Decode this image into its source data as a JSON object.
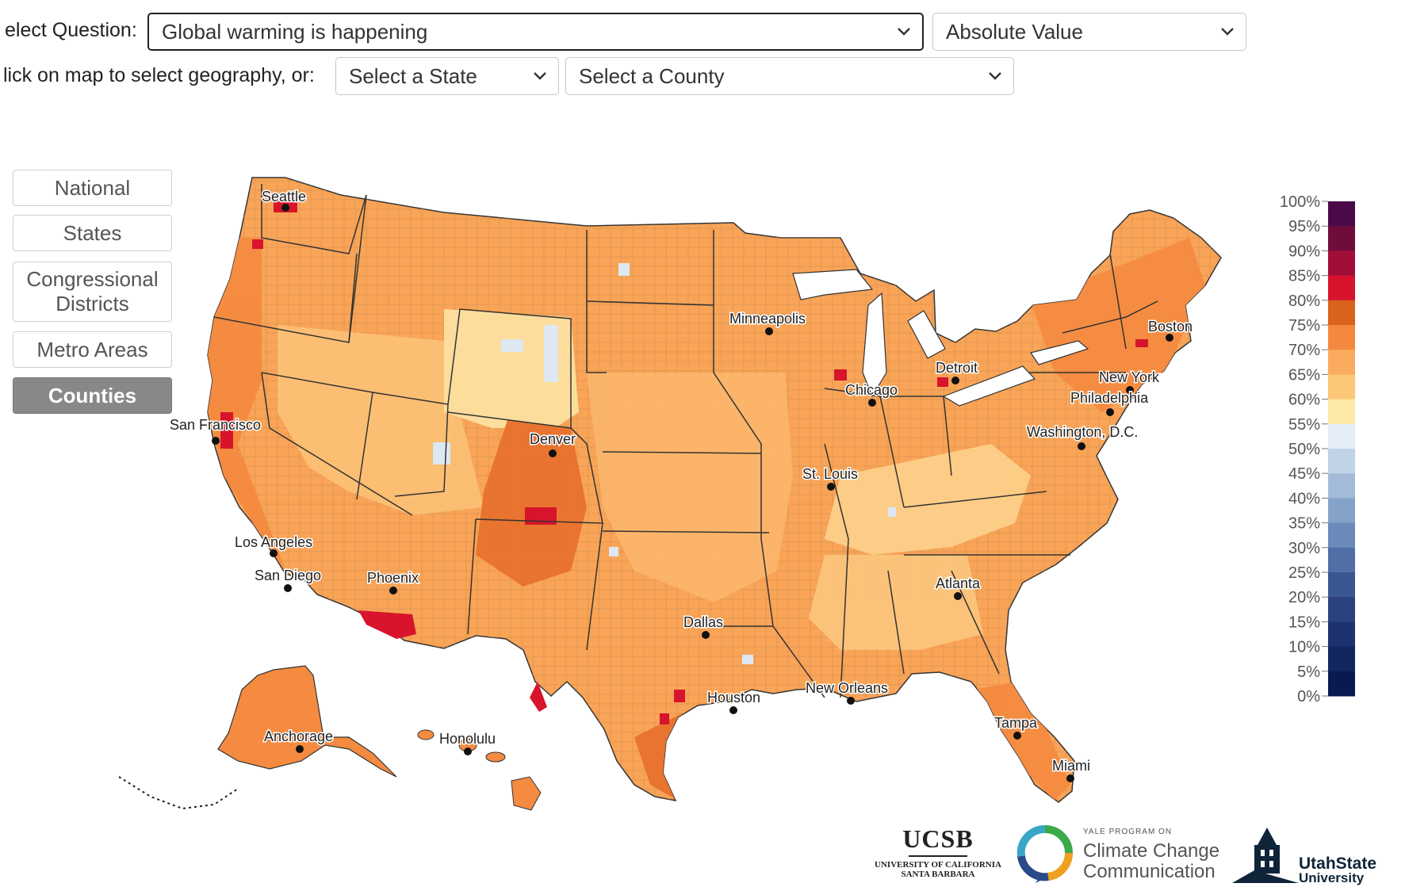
{
  "controls": {
    "question_label": "elect Question:",
    "question_value": "Global warming is happening",
    "measure_value": "Absolute Value",
    "geo_label": "lick on map to select geography, or:",
    "state_placeholder": "Select a State",
    "county_placeholder": "Select a County"
  },
  "geo_buttons": [
    {
      "label": "National",
      "active": false
    },
    {
      "label": "States",
      "active": false
    },
    {
      "label": "Congressional Districts",
      "active": false
    },
    {
      "label": "Metro Areas",
      "active": false
    },
    {
      "label": "Counties",
      "active": true
    }
  ],
  "map": {
    "cities": [
      "Seattle",
      "Minneapolis",
      "Boston",
      "Detroit",
      "New York",
      "Chicago",
      "Philadelphia",
      "Washington, D.C.",
      "San Francisco",
      "Denver",
      "St. Louis",
      "Los Angeles",
      "San Diego",
      "Phoenix",
      "Atlanta",
      "Dallas",
      "New Orleans",
      "Houston",
      "Tampa",
      "Anchorage",
      "Honolulu",
      "Miami"
    ],
    "level_colors": {
      "50_55": "#fde9a5",
      "55_60": "#fdd08a",
      "60_65": "#fcb86a",
      "65_70": "#f9a457",
      "70_75": "#f48b41",
      "75_80": "#e05d1e",
      "80_85": "#d7142b",
      "below_50": "#dde8f3"
    }
  },
  "legend": {
    "ticks": [
      "100%",
      "95%",
      "90%",
      "85%",
      "80%",
      "75%",
      "70%",
      "65%",
      "60%",
      "55%",
      "50%",
      "45%",
      "40%",
      "35%",
      "30%",
      "25%",
      "20%",
      "15%",
      "10%",
      "5%",
      "0%"
    ],
    "colors": [
      "#4a0a4a",
      "#6e0d3b",
      "#a10e37",
      "#d7142b",
      "#d9621c",
      "#f5883f",
      "#fbab5d",
      "#fdc778",
      "#fde9a5",
      "#e4edf6",
      "#c1d3e7",
      "#a3bbd9",
      "#85a3c8",
      "#6a8bba",
      "#506fa6",
      "#3a5792",
      "#2b427f",
      "#1d3270",
      "#122660",
      "#0a1a50"
    ]
  },
  "logos": {
    "ucsb_name": "UCSB",
    "ucsb_sub1": "UNIVERSITY OF CALIFORNIA",
    "ucsb_sub2": "SANTA BARBARA",
    "yale_small": "YALE PROGRAM ON",
    "yale_line1": "Climate Change",
    "yale_line2": "Communication",
    "usu_line1": "UtahState",
    "usu_line2": "University"
  }
}
